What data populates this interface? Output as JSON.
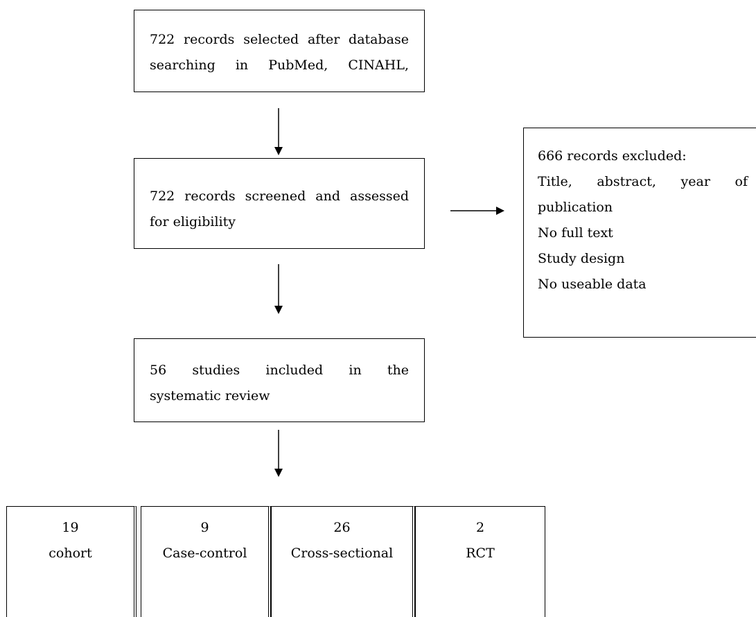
{
  "search_box": {
    "line1": "722 records selected after database",
    "line2": "searching in PubMed, CINAHL,"
  },
  "screen_box": {
    "line1": "722 records screened and assessed",
    "line2": "for eligibility"
  },
  "excluded_box": {
    "title": "666 records excluded:",
    "line1": "Title, abstract, year of",
    "line2": "publication",
    "line3": "No full text",
    "line4": "Study design",
    "line5": "No useable data"
  },
  "included_box": {
    "line1": "56 studies included in the",
    "line2": "systematic review"
  },
  "categories": [
    {
      "count": "19",
      "label": "cohort"
    },
    {
      "count": "9",
      "label": "Case-control"
    },
    {
      "count": "26",
      "label": "Cross-sectional"
    },
    {
      "count": "2",
      "label": "RCT"
    }
  ]
}
